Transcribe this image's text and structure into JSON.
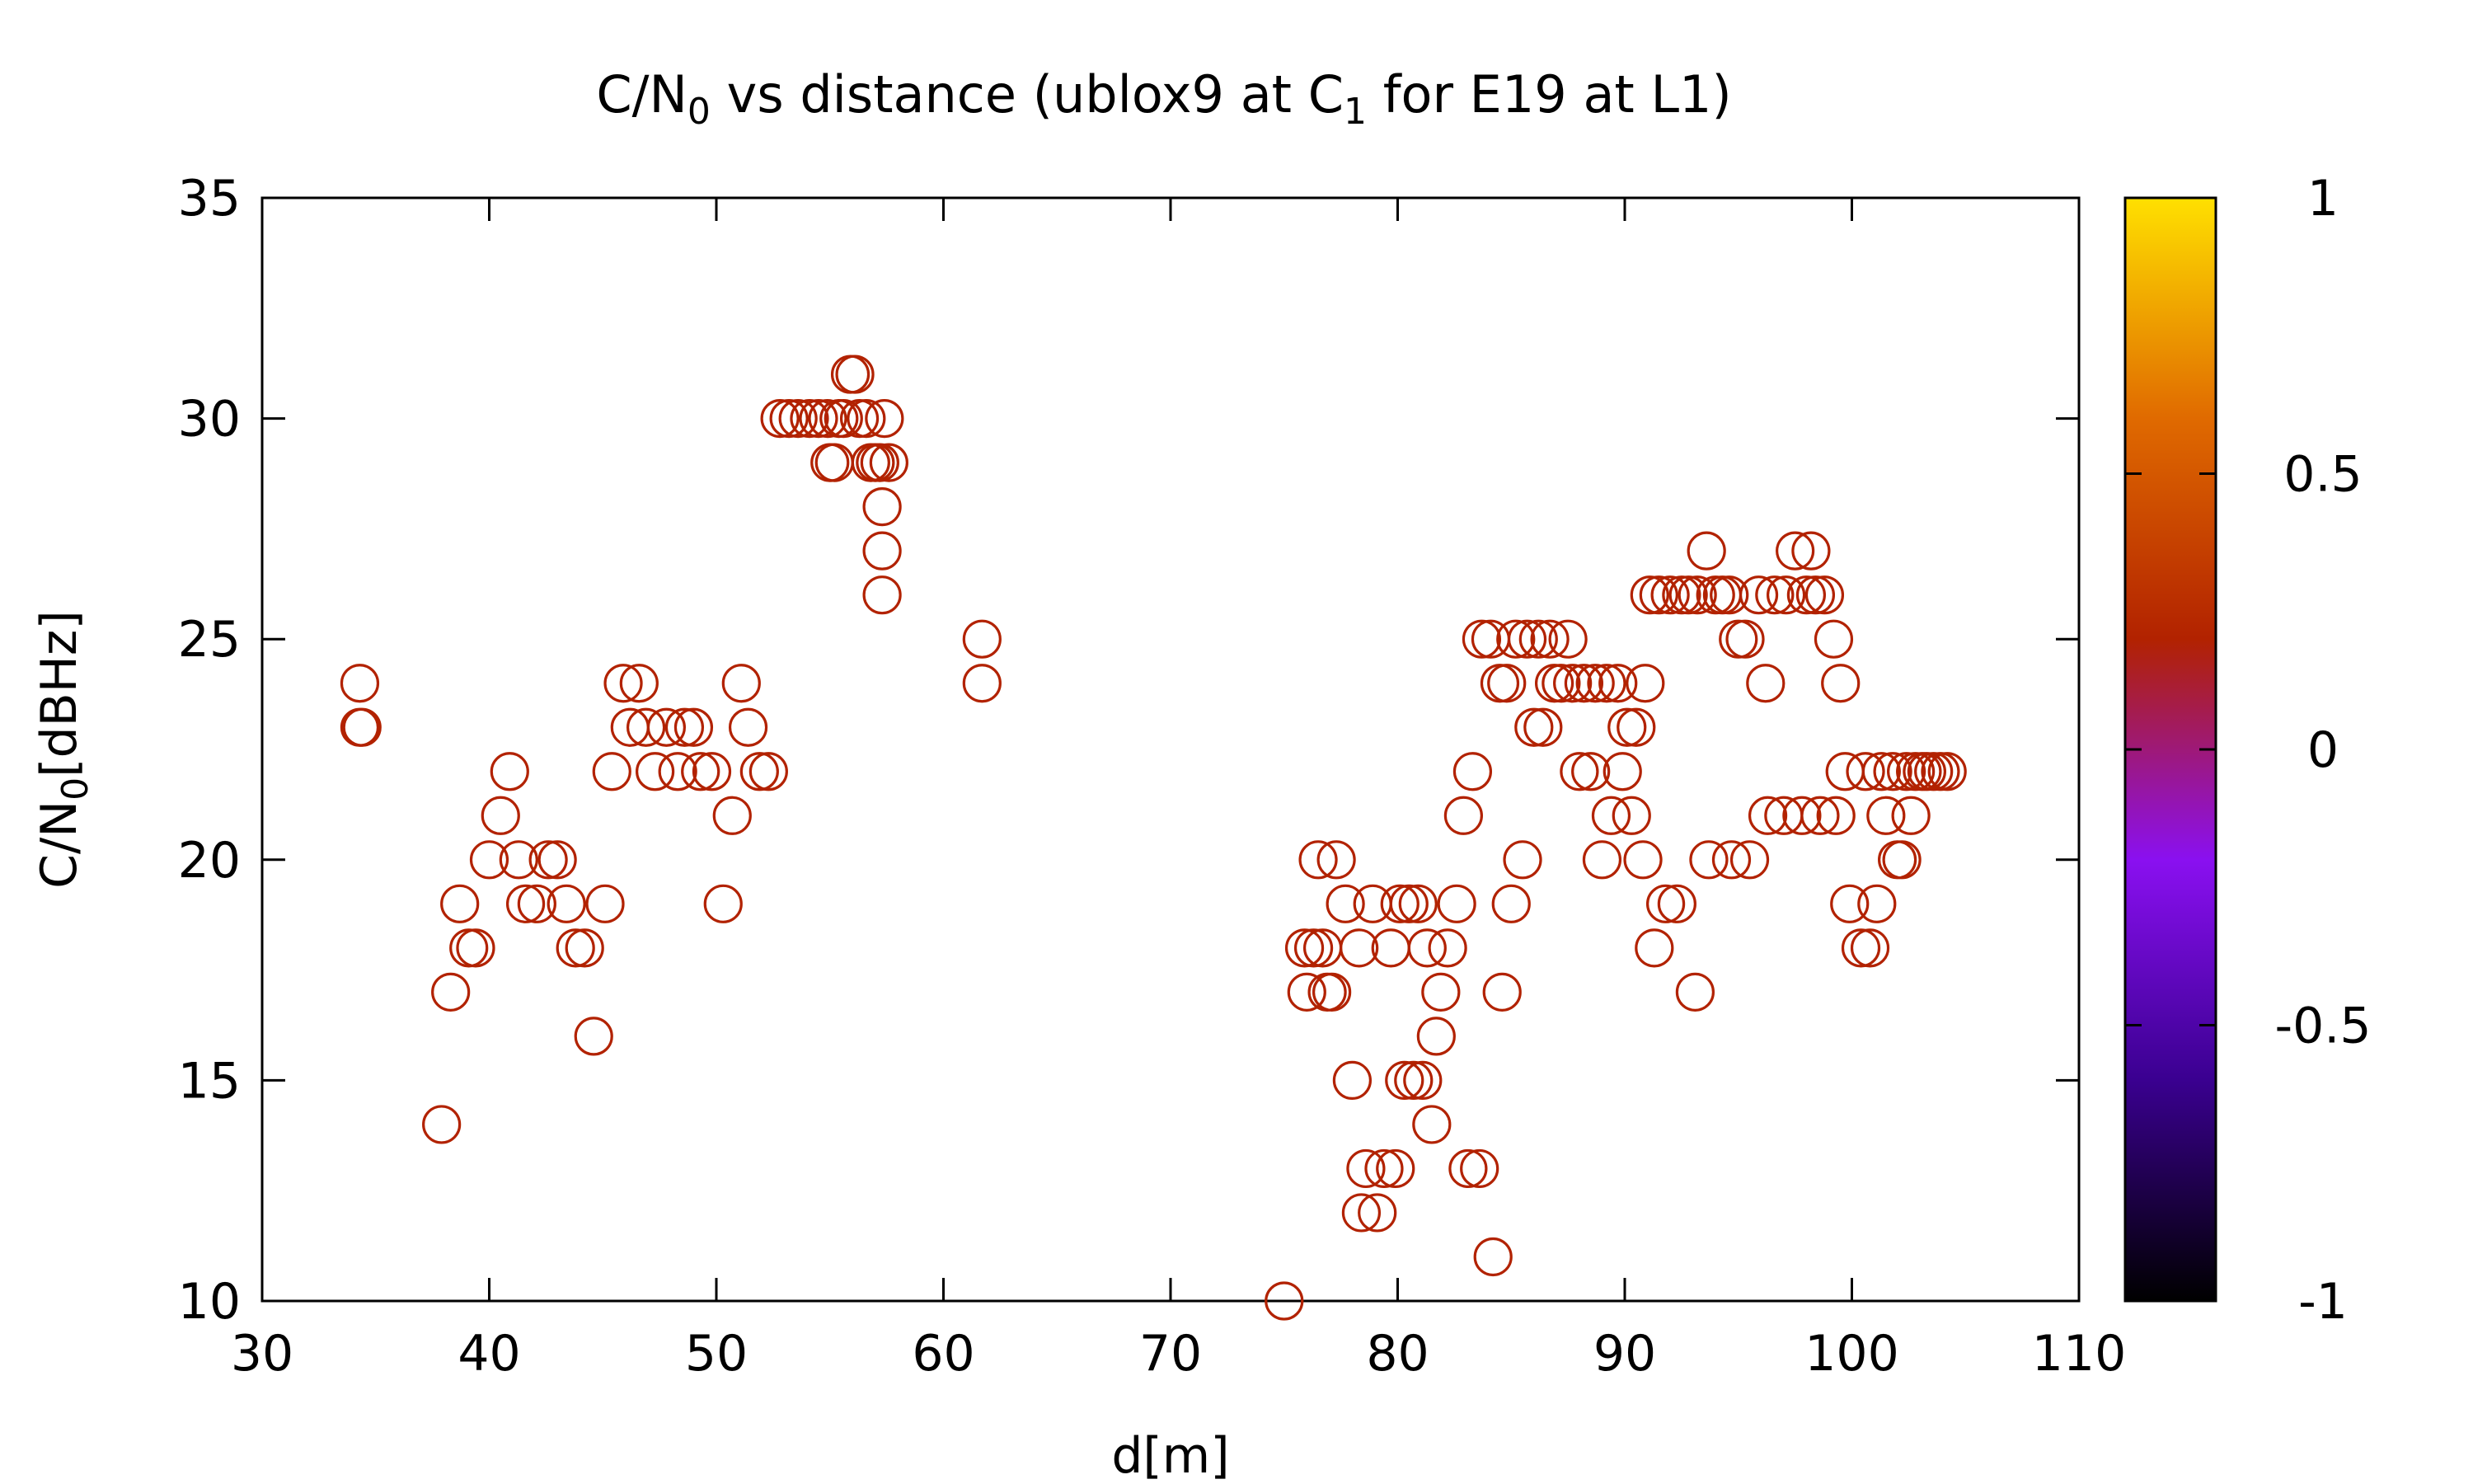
{
  "chart_data": {
    "type": "scatter",
    "title": {
      "prefix": "C/N",
      "sub1": "0",
      "middle": " vs distance (ublox9 at C",
      "sub2": "1",
      "suffix": " for E19 at L1)"
    },
    "xlabel": "d[m]",
    "ylabel": {
      "prefix": "C/N",
      "sub": "0",
      "suffix": "[dBHz]"
    },
    "xlim": [
      30,
      110
    ],
    "ylim": [
      10,
      35
    ],
    "xticks": [
      30,
      40,
      50,
      60,
      70,
      80,
      90,
      100,
      110
    ],
    "yticks": [
      10,
      15,
      20,
      25,
      30,
      35
    ],
    "grid": false,
    "marker": "open-circle",
    "point_color": "#b22200",
    "colorbar": {
      "range": [
        -1,
        1
      ],
      "ticks": [
        "1",
        "0.5",
        "0",
        "-0.5",
        "-1"
      ],
      "colors": [
        "#000000",
        "#3a0090",
        "#8a10f0",
        "#b22200",
        "#e06a00",
        "#ffe000"
      ]
    },
    "points": [
      [
        34.3,
        24
      ],
      [
        34.3,
        23
      ],
      [
        34.4,
        23
      ],
      [
        37.9,
        14
      ],
      [
        38.3,
        17
      ],
      [
        38.7,
        19
      ],
      [
        39.1,
        18
      ],
      [
        39.4,
        18
      ],
      [
        40.0,
        20
      ],
      [
        40.5,
        21
      ],
      [
        40.9,
        22
      ],
      [
        41.3,
        20
      ],
      [
        41.6,
        19
      ],
      [
        42.1,
        19
      ],
      [
        42.6,
        20
      ],
      [
        43.0,
        20
      ],
      [
        43.4,
        19
      ],
      [
        43.8,
        18
      ],
      [
        44.2,
        18
      ],
      [
        44.6,
        16
      ],
      [
        45.1,
        19
      ],
      [
        45.4,
        22
      ],
      [
        45.9,
        24
      ],
      [
        46.2,
        23
      ],
      [
        46.6,
        24
      ],
      [
        46.9,
        23
      ],
      [
        47.3,
        22
      ],
      [
        47.8,
        23
      ],
      [
        48.3,
        22
      ],
      [
        48.6,
        23
      ],
      [
        49.0,
        23
      ],
      [
        49.3,
        22
      ],
      [
        49.8,
        22
      ],
      [
        50.3,
        19
      ],
      [
        50.7,
        21
      ],
      [
        51.1,
        24
      ],
      [
        51.4,
        23
      ],
      [
        51.9,
        22
      ],
      [
        52.3,
        22
      ],
      [
        52.8,
        30
      ],
      [
        53.2,
        30
      ],
      [
        53.6,
        30
      ],
      [
        54.1,
        30
      ],
      [
        54.5,
        30
      ],
      [
        54.9,
        30
      ],
      [
        55.0,
        29
      ],
      [
        55.2,
        29
      ],
      [
        55.4,
        30
      ],
      [
        55.6,
        30
      ],
      [
        55.9,
        31
      ],
      [
        56.1,
        31
      ],
      [
        56.3,
        30
      ],
      [
        56.6,
        30
      ],
      [
        56.8,
        29
      ],
      [
        57.0,
        29
      ],
      [
        57.2,
        29
      ],
      [
        57.4,
        30
      ],
      [
        57.6,
        29
      ],
      [
        57.3,
        28
      ],
      [
        57.3,
        27
      ],
      [
        57.3,
        26
      ],
      [
        61.7,
        25
      ],
      [
        61.7,
        24
      ],
      [
        75.0,
        10
      ],
      [
        75.9,
        18
      ],
      [
        76.0,
        17
      ],
      [
        76.3,
        18
      ],
      [
        76.5,
        20
      ],
      [
        76.7,
        18
      ],
      [
        76.9,
        17
      ],
      [
        77.1,
        17
      ],
      [
        77.3,
        20
      ],
      [
        77.7,
        19
      ],
      [
        78.0,
        15
      ],
      [
        78.3,
        18
      ],
      [
        78.4,
        12
      ],
      [
        78.6,
        13
      ],
      [
        78.9,
        19
      ],
      [
        79.1,
        12
      ],
      [
        79.4,
        13
      ],
      [
        79.7,
        18
      ],
      [
        79.9,
        13
      ],
      [
        80.1,
        19
      ],
      [
        80.3,
        15
      ],
      [
        80.5,
        19
      ],
      [
        80.7,
        15
      ],
      [
        80.9,
        19
      ],
      [
        81.1,
        15
      ],
      [
        81.3,
        18
      ],
      [
        81.5,
        14
      ],
      [
        81.7,
        16
      ],
      [
        81.9,
        17
      ],
      [
        82.2,
        18
      ],
      [
        82.6,
        19
      ],
      [
        82.9,
        21
      ],
      [
        83.1,
        13
      ],
      [
        83.3,
        22
      ],
      [
        83.6,
        13
      ],
      [
        83.7,
        25
      ],
      [
        84.1,
        25
      ],
      [
        84.2,
        11
      ],
      [
        84.5,
        24
      ],
      [
        84.6,
        17
      ],
      [
        84.8,
        24
      ],
      [
        85.0,
        19
      ],
      [
        85.2,
        25
      ],
      [
        85.5,
        20
      ],
      [
        85.7,
        25
      ],
      [
        86.0,
        23
      ],
      [
        86.2,
        25
      ],
      [
        86.4,
        23
      ],
      [
        86.7,
        25
      ],
      [
        86.9,
        24
      ],
      [
        87.2,
        24
      ],
      [
        87.5,
        25
      ],
      [
        87.7,
        24
      ],
      [
        88.0,
        22
      ],
      [
        88.2,
        24
      ],
      [
        88.5,
        22
      ],
      [
        88.7,
        24
      ],
      [
        89.0,
        20
      ],
      [
        89.2,
        24
      ],
      [
        89.4,
        21
      ],
      [
        89.7,
        24
      ],
      [
        89.9,
        22
      ],
      [
        90.1,
        23
      ],
      [
        90.3,
        21
      ],
      [
        90.5,
        23
      ],
      [
        90.8,
        20
      ],
      [
        90.9,
        24
      ],
      [
        91.1,
        26
      ],
      [
        91.3,
        18
      ],
      [
        91.5,
        26
      ],
      [
        91.8,
        19
      ],
      [
        92.0,
        26
      ],
      [
        92.3,
        19
      ],
      [
        92.5,
        26
      ],
      [
        92.8,
        26
      ],
      [
        93.1,
        17
      ],
      [
        93.2,
        26
      ],
      [
        93.6,
        27
      ],
      [
        93.7,
        20
      ],
      [
        94.0,
        26
      ],
      [
        94.3,
        26
      ],
      [
        94.6,
        26
      ],
      [
        94.7,
        20
      ],
      [
        95.0,
        25
      ],
      [
        95.3,
        25
      ],
      [
        95.5,
        20
      ],
      [
        95.9,
        26
      ],
      [
        96.2,
        24
      ],
      [
        96.3,
        21
      ],
      [
        96.6,
        26
      ],
      [
        97.0,
        21
      ],
      [
        97.1,
        26
      ],
      [
        97.5,
        27
      ],
      [
        97.8,
        21
      ],
      [
        98.0,
        26
      ],
      [
        98.2,
        27
      ],
      [
        98.4,
        26
      ],
      [
        98.6,
        21
      ],
      [
        98.8,
        26
      ],
      [
        99.2,
        25
      ],
      [
        99.3,
        21
      ],
      [
        99.5,
        24
      ],
      [
        99.7,
        22
      ],
      [
        99.9,
        19
      ],
      [
        100.4,
        18
      ],
      [
        100.6,
        22
      ],
      [
        100.8,
        18
      ],
      [
        101.1,
        19
      ],
      [
        101.3,
        22
      ],
      [
        101.5,
        21
      ],
      [
        101.8,
        22
      ],
      [
        102.0,
        20
      ],
      [
        102.2,
        20
      ],
      [
        102.4,
        22
      ],
      [
        102.6,
        21
      ],
      [
        102.8,
        22
      ],
      [
        103.1,
        22
      ],
      [
        103.3,
        22
      ],
      [
        103.6,
        22
      ],
      [
        103.9,
        22
      ],
      [
        104.2,
        22
      ]
    ]
  }
}
